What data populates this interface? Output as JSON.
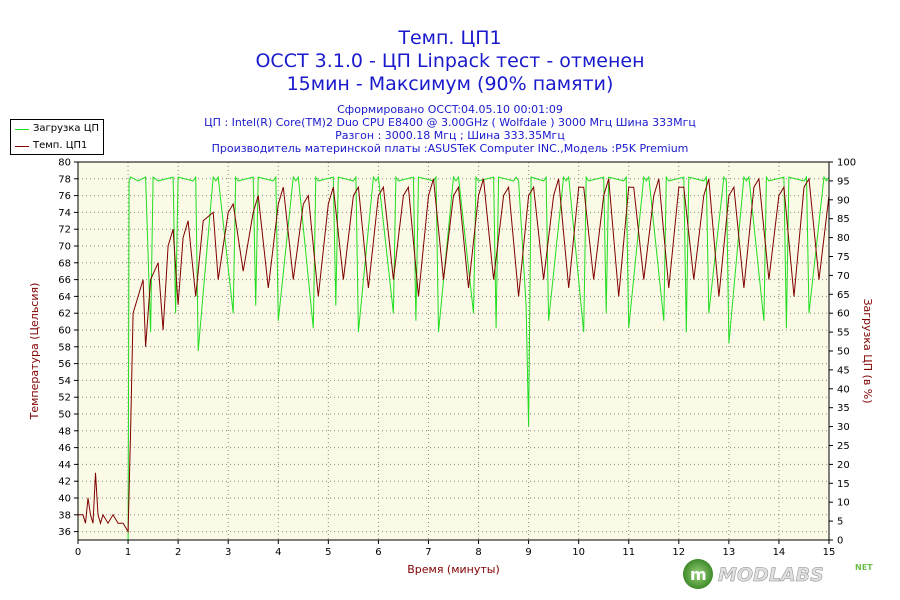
{
  "header": {
    "title1": "Темп. ЦП1",
    "title2": "OCCT 3.1.0 - ЦП Linpack тест - отменен",
    "title3": "15мин - Максимум (90% памяти)",
    "sub1": "Сформировано OCCT:04.05.10 00:01:09",
    "sub2": "ЦП : Intel(R) Core(TM)2 Duo CPU E8400 @ 3.00GHz ( Wolfdale ) 3000 Мгц Шина 333Мгц",
    "sub3": "Разгон : 3000.18 Мгц ; Шина 333.35Мгц",
    "sub4": "Производитель материнской платы :ASUSTeK Computer INC.,Модель :P5K Premium"
  },
  "legend": {
    "load": "Загрузка ЦП",
    "temp": "Темп. ЦП1"
  },
  "logo": {
    "text": "MODLABS",
    "suffix": "NET"
  },
  "colors": {
    "load": "#22dd22",
    "temp": "#800000",
    "plot_bg": "#fafae6",
    "title": "#1a1acd"
  },
  "chart_data": {
    "type": "line",
    "xlabel": "Время (минуты)",
    "ylabel_left": "Температура (Цельсия)",
    "ylabel_right": "Загрузка ЦП (в %)",
    "xlim": [
      0,
      15
    ],
    "ylim_left": [
      35,
      80
    ],
    "ylim_right": [
      0,
      100
    ],
    "x_ticks": [
      "0",
      "1",
      "2",
      "3",
      "4",
      "5",
      "6",
      "7",
      "8",
      "9",
      "10",
      "11",
      "12",
      "13",
      "14",
      "15"
    ],
    "y_left_ticks": [
      "36",
      "38",
      "40",
      "42",
      "44",
      "46",
      "48",
      "50",
      "52",
      "54",
      "56",
      "58",
      "60",
      "62",
      "64",
      "66",
      "68",
      "70",
      "72",
      "74",
      "76",
      "78",
      "80"
    ],
    "y_right_ticks": [
      "0",
      "5",
      "10",
      "15",
      "20",
      "25",
      "30",
      "35",
      "40",
      "45",
      "50",
      "55",
      "60",
      "65",
      "70",
      "75",
      "80",
      "85",
      "90",
      "95",
      "100"
    ],
    "grid": true,
    "legend_position": "top-left",
    "series": [
      {
        "name": "Загрузка ЦП",
        "axis": "right",
        "x": [
          0,
          1.0,
          1.02,
          1.05,
          1.2,
          1.35,
          1.45,
          1.5,
          1.6,
          1.9,
          1.95,
          2.0,
          2.3,
          2.35,
          2.4,
          2.7,
          2.75,
          2.8,
          3.1,
          3.15,
          3.2,
          3.5,
          3.55,
          3.6,
          3.9,
          3.95,
          4.0,
          4.3,
          4.35,
          4.4,
          4.7,
          4.75,
          4.8,
          5.1,
          5.15,
          5.2,
          5.5,
          5.55,
          5.6,
          5.9,
          5.95,
          6.0,
          6.3,
          6.35,
          6.4,
          6.7,
          6.75,
          6.8,
          7.1,
          7.15,
          7.2,
          7.5,
          7.55,
          7.6,
          7.9,
          7.95,
          8.0,
          8.3,
          8.35,
          8.4,
          8.7,
          8.75,
          8.8,
          8.95,
          9.0,
          9.05,
          9.3,
          9.35,
          9.4,
          9.7,
          9.75,
          9.8,
          10.1,
          10.15,
          10.2,
          10.5,
          10.55,
          10.6,
          10.9,
          10.95,
          11.0,
          11.3,
          11.35,
          11.4,
          11.7,
          11.75,
          11.8,
          12.1,
          12.15,
          12.2,
          12.5,
          12.55,
          12.6,
          12.9,
          12.95,
          13.0,
          13.3,
          13.35,
          13.4,
          13.7,
          13.75,
          13.8,
          14.1,
          14.15,
          14.2,
          14.5,
          14.55,
          14.6,
          14.9,
          14.95,
          15.0
        ],
        "y": [
          0,
          0,
          95,
          96,
          95,
          96,
          55,
          96,
          95,
          96,
          60,
          96,
          95,
          96,
          50,
          96,
          95,
          96,
          60,
          96,
          95,
          96,
          62,
          96,
          95,
          96,
          58,
          96,
          95,
          96,
          56,
          96,
          95,
          96,
          62,
          96,
          95,
          96,
          55,
          96,
          95,
          96,
          60,
          96,
          95,
          96,
          58,
          96,
          95,
          96,
          55,
          96,
          95,
          96,
          60,
          96,
          95,
          96,
          56,
          96,
          95,
          96,
          95,
          62,
          30,
          96,
          95,
          96,
          58,
          96,
          95,
          96,
          55,
          96,
          95,
          96,
          60,
          96,
          95,
          96,
          56,
          96,
          95,
          96,
          58,
          96,
          95,
          96,
          55,
          96,
          95,
          96,
          60,
          96,
          95,
          52,
          96,
          95,
          96,
          58,
          96,
          95,
          96,
          56,
          96,
          95,
          96,
          60,
          96,
          95,
          96
        ]
      },
      {
        "name": "Темп. ЦП1",
        "axis": "left",
        "x": [
          0,
          0.1,
          0.15,
          0.2,
          0.25,
          0.3,
          0.35,
          0.4,
          0.45,
          0.5,
          0.6,
          0.7,
          0.8,
          0.9,
          1.0,
          1.05,
          1.1,
          1.2,
          1.3,
          1.35,
          1.45,
          1.6,
          1.7,
          1.8,
          1.9,
          2.0,
          2.1,
          2.2,
          2.35,
          2.5,
          2.7,
          2.8,
          3.0,
          3.1,
          3.3,
          3.5,
          3.6,
          3.8,
          4.0,
          4.1,
          4.3,
          4.5,
          4.6,
          4.8,
          5.0,
          5.1,
          5.3,
          5.5,
          5.6,
          5.8,
          6.0,
          6.1,
          6.3,
          6.5,
          6.6,
          6.8,
          7.0,
          7.1,
          7.3,
          7.5,
          7.6,
          7.8,
          8.0,
          8.1,
          8.3,
          8.5,
          8.6,
          8.8,
          9.0,
          9.1,
          9.3,
          9.5,
          9.6,
          9.8,
          10.0,
          10.1,
          10.3,
          10.5,
          10.6,
          10.8,
          11.0,
          11.1,
          11.3,
          11.5,
          11.6,
          11.8,
          12.0,
          12.1,
          12.3,
          12.5,
          12.6,
          12.8,
          13.0,
          13.1,
          13.3,
          13.5,
          13.6,
          13.8,
          14.0,
          14.1,
          14.3,
          14.5,
          14.6,
          14.8,
          15.0
        ],
        "y": [
          38,
          38,
          37,
          40,
          38,
          37,
          43,
          38,
          37,
          38,
          37,
          38,
          37,
          37,
          36,
          48,
          62,
          64,
          66,
          58,
          66,
          68,
          60,
          70,
          72,
          63,
          71,
          73,
          64,
          73,
          74,
          66,
          74,
          75,
          67,
          74,
          76,
          65,
          75,
          77,
          66,
          75,
          76,
          64,
          75,
          77,
          66,
          76,
          77,
          65,
          76,
          77,
          66,
          76,
          77,
          64,
          76,
          78,
          66,
          76,
          77,
          65,
          76,
          78,
          66,
          76,
          77,
          64,
          76,
          77,
          66,
          76,
          78,
          65,
          77,
          77,
          66,
          76,
          78,
          64,
          77,
          77,
          66,
          76,
          78,
          65,
          77,
          77,
          66,
          76,
          78,
          64,
          76,
          77,
          65,
          77,
          78,
          66,
          76,
          77,
          64,
          77,
          78,
          66,
          76
        ]
      }
    ]
  }
}
